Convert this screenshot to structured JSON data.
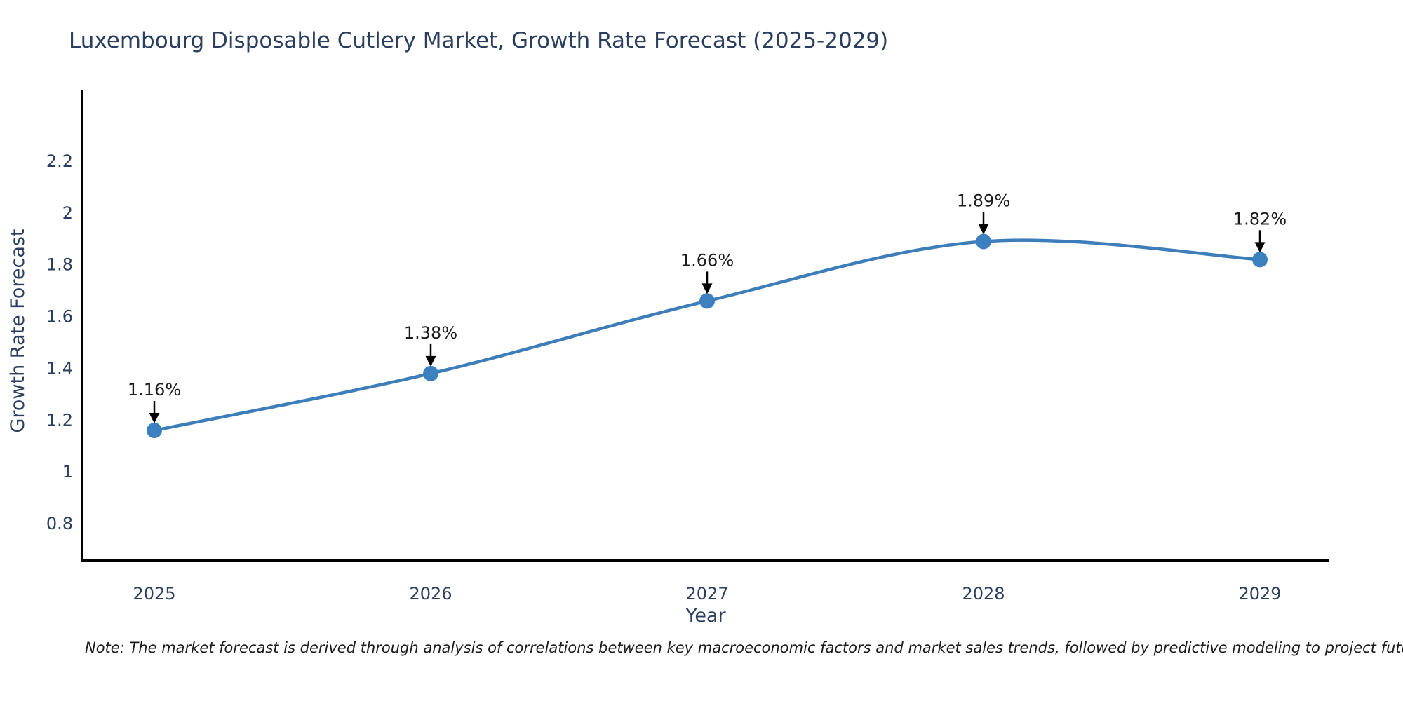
{
  "title": "Luxembourg Disposable Cutlery Market, Growth Rate Forecast (2025-2029)",
  "note": "Note: The market forecast is derived through analysis of correlations between key macroeconomic factors and market sales trends, followed by predictive modeling to project future sales",
  "chart_data": {
    "type": "line",
    "title": "Luxembourg Disposable Cutlery Market, Growth Rate Forecast (2025-2029)",
    "categories": [
      "2025",
      "2026",
      "2027",
      "2028",
      "2029"
    ],
    "series": [
      {
        "name": "Growth Rate Forecast",
        "values": [
          1.16,
          1.38,
          1.66,
          1.89,
          1.82
        ]
      }
    ],
    "point_labels": [
      "1.16%",
      "1.38%",
      "1.66%",
      "1.89%",
      "1.82%"
    ],
    "xlabel": "Year",
    "ylabel": "Growth Rate Forecast",
    "ytick_labels": [
      "0.8",
      "1",
      "1.2",
      "1.4",
      "1.6",
      "1.8",
      "2",
      "2.2"
    ],
    "ytick_values": [
      0.8,
      1.0,
      1.2,
      1.4,
      1.6,
      1.8,
      2.0,
      2.2
    ],
    "ylim": [
      0.66,
      2.48
    ],
    "grid": false,
    "legend": false,
    "line_shape": "spline",
    "annotation_arrows": true,
    "colors": {
      "line": "#3d7eba",
      "marker": "#3d80bf",
      "axis": "#000000",
      "tick_text": "#2a3f5f",
      "axis_title_text": "#2a3f5f",
      "title_text": "#2a3f5f",
      "annotation_text": "#1c1c1c",
      "arrow": "#000000",
      "background": "#ffffff"
    }
  }
}
